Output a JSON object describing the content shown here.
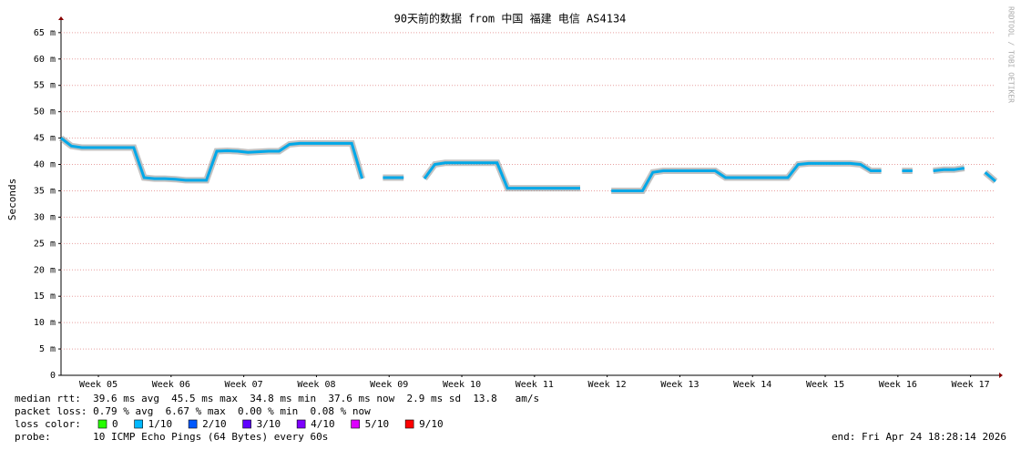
{
  "chart_data": {
    "type": "line",
    "title": "90天前的数据 from 中国 福建 电信 AS4134",
    "y_label": "Seconds",
    "watermark": "RRDTOOL / TOBI OETIKER",
    "x": [
      0,
      1,
      2,
      3,
      4,
      5,
      6,
      7,
      8,
      9,
      10,
      11,
      12,
      13,
      14,
      15,
      16,
      17,
      18,
      19,
      20,
      21,
      22,
      23,
      24,
      25,
      26,
      27,
      28,
      29,
      30,
      31,
      32,
      33,
      34,
      35,
      36,
      37,
      38,
      39,
      40,
      41,
      42,
      43,
      44,
      45,
      46,
      47,
      48,
      49,
      50,
      51,
      52,
      53,
      54,
      55,
      56,
      57,
      58,
      59,
      60,
      61,
      62,
      63,
      64,
      65,
      66,
      67,
      68,
      69,
      70,
      71,
      72,
      73,
      74,
      75,
      76,
      77,
      78,
      79,
      80,
      81,
      82,
      83,
      84,
      85,
      86,
      87,
      88,
      89,
      90
    ],
    "values": [
      0.045,
      0.0435,
      0.0432,
      0.0432,
      0.0432,
      0.0432,
      0.0432,
      0.0432,
      0.0375,
      0.0373,
      0.0373,
      0.0372,
      0.037,
      0.037,
      0.037,
      0.0425,
      0.0426,
      0.0425,
      0.0423,
      0.0424,
      0.0425,
      0.0425,
      0.0438,
      0.044,
      0.044,
      0.044,
      0.044,
      0.044,
      0.044,
      0.0373,
      null,
      0.0375,
      0.0375,
      0.0375,
      null,
      0.0373,
      0.04,
      0.0403,
      0.0403,
      0.0403,
      0.0403,
      0.0403,
      0.0403,
      0.0355,
      0.0355,
      0.0355,
      0.0355,
      0.0355,
      0.0355,
      0.0355,
      0.0355,
      null,
      null,
      0.035,
      0.035,
      0.035,
      0.035,
      0.0385,
      0.0388,
      0.0388,
      0.0388,
      0.0388,
      0.0388,
      0.0388,
      0.0375,
      0.0375,
      0.0375,
      0.0375,
      0.0375,
      0.0375,
      0.0375,
      0.04,
      0.0402,
      0.0402,
      0.0402,
      0.0402,
      0.0402,
      0.04,
      0.0388,
      0.0388,
      null,
      0.0388,
      0.0388,
      null,
      0.0388,
      0.039,
      0.039,
      0.0393,
      null,
      0.0385,
      0.0368
    ],
    "color": "#00a8e8",
    "xlim": [
      0,
      90
    ],
    "xticks": [
      {
        "value": 3.6,
        "label": "Week 05"
      },
      {
        "value": 10.6,
        "label": "Week 06"
      },
      {
        "value": 17.6,
        "label": "Week 07"
      },
      {
        "value": 24.6,
        "label": "Week 08"
      },
      {
        "value": 31.6,
        "label": "Week 09"
      },
      {
        "value": 38.6,
        "label": "Week 10"
      },
      {
        "value": 45.6,
        "label": "Week 11"
      },
      {
        "value": 52.6,
        "label": "Week 12"
      },
      {
        "value": 59.6,
        "label": "Week 13"
      },
      {
        "value": 66.6,
        "label": "Week 14"
      },
      {
        "value": 73.6,
        "label": "Week 15"
      },
      {
        "value": 80.6,
        "label": "Week 16"
      },
      {
        "value": 87.6,
        "label": "Week 17"
      }
    ],
    "ylim": [
      0,
      0.0667
    ],
    "yticks": [
      0,
      {
        "value": 0.005,
        "label": "5 m"
      },
      {
        "value": 0.01,
        "label": "10 m"
      },
      {
        "value": 0.015,
        "label": "15 m"
      },
      {
        "value": 0.02,
        "label": "20 m"
      },
      {
        "value": 0.025,
        "label": "25 m"
      },
      {
        "value": 0.03,
        "label": "30 m"
      },
      {
        "value": 0.035,
        "label": "35 m"
      },
      {
        "value": 0.04,
        "label": "40 m"
      },
      {
        "value": 0.045,
        "label": "45 m"
      },
      {
        "value": 0.05,
        "label": "50 m"
      },
      {
        "value": 0.055,
        "label": "55 m"
      },
      {
        "value": 0.06,
        "label": "60 m"
      },
      {
        "value": 0.065,
        "label": "65 m"
      }
    ],
    "grid": true,
    "info_lines": [
      "median rtt:  39.6 ms avg  45.5 ms max  34.8 ms min  37.6 ms now  2.9 ms sd  13.8   am/s",
      "packet loss: 0.79 % avg  6.67 % max  0.00 % min  0.08 % now"
    ],
    "loss_color_label": "loss color:",
    "loss_colors": [
      {
        "label": "0",
        "color": "#26ff00"
      },
      {
        "label": "1/10",
        "color": "#00b8ff"
      },
      {
        "label": "2/10",
        "color": "#0059ff"
      },
      {
        "label": "3/10",
        "color": "#5e00ff"
      },
      {
        "label": "4/10",
        "color": "#7e00ff"
      },
      {
        "label": "5/10",
        "color": "#dd00ff"
      },
      {
        "label": "9/10",
        "color": "#ff0000"
      }
    ],
    "probe": "probe:       10 ICMP Echo Pings (64 Bytes) every 60s",
    "end": "end: Fri Apr 24 18:28:14 2026"
  }
}
